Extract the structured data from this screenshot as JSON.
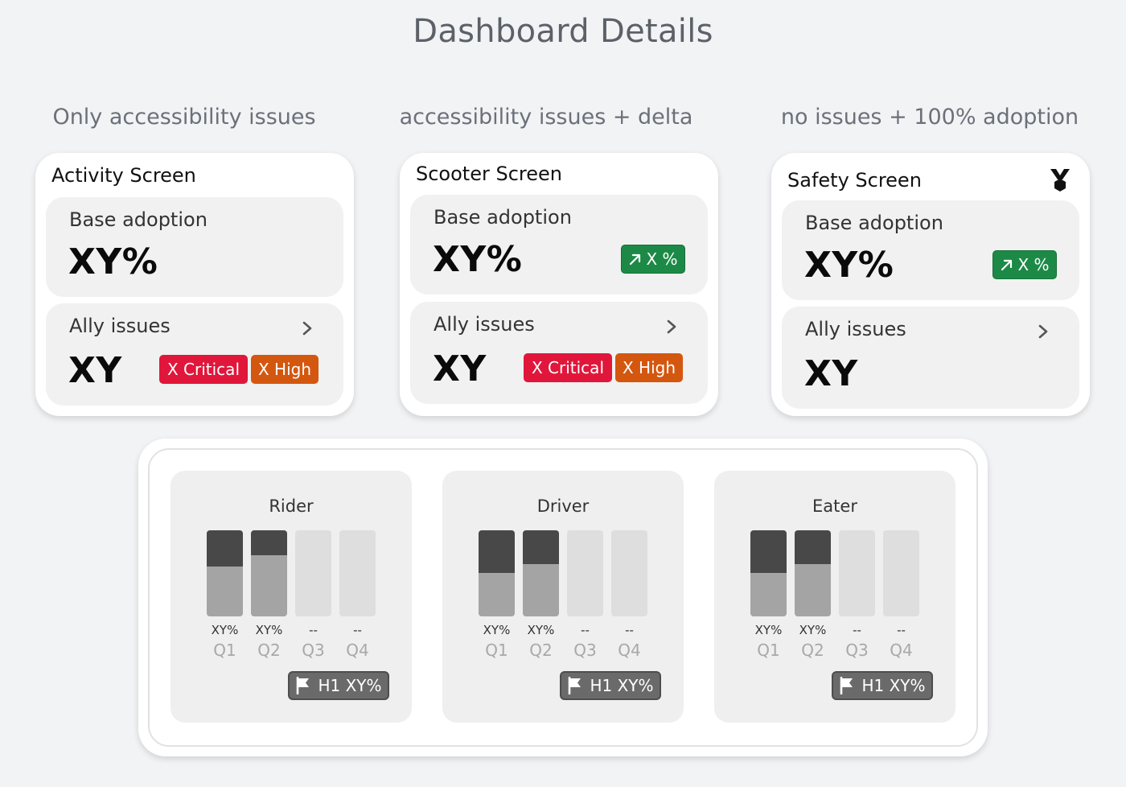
{
  "page": {
    "title": "Dashboard Details"
  },
  "columns": [
    {
      "heading": "Only accessibility issues",
      "card": {
        "title": "Activity Screen",
        "adoption_label": "Base adoption",
        "adoption_value": "XY%",
        "issues_label": "Ally issues",
        "issues_value": "XY",
        "critical": "X Critical",
        "high": "X High"
      }
    },
    {
      "heading": "accessibility issues + delta",
      "card": {
        "title": "Scooter Screen",
        "adoption_label": "Base adoption",
        "adoption_value": "XY%",
        "delta": "X %",
        "issues_label": "Ally issues",
        "issues_value": "XY",
        "critical": "X Critical",
        "high": "X High"
      }
    },
    {
      "heading": "no issues + 100% adoption",
      "card": {
        "title": "Safety Screen",
        "icon": "medal-icon",
        "adoption_label": "Base adoption",
        "adoption_value": "XY%",
        "delta": "X %",
        "issues_label": "Ally issues",
        "issues_value": "XY"
      }
    }
  ],
  "segments": [
    {
      "title": "Rider",
      "quarters": [
        {
          "label": "Q1",
          "value": "XY%",
          "dark": 0.42,
          "light": 0.58
        },
        {
          "label": "Q2",
          "value": "XY%",
          "dark": 0.29,
          "light": 0.71
        },
        {
          "label": "Q3",
          "value": "--",
          "dark": 0,
          "light": 0
        },
        {
          "label": "Q4",
          "value": "--",
          "dark": 0,
          "light": 0
        }
      ],
      "chip": "H1 XY%"
    },
    {
      "title": "Driver",
      "quarters": [
        {
          "label": "Q1",
          "value": "XY%",
          "dark": 0.5,
          "light": 0.5
        },
        {
          "label": "Q2",
          "value": "XY%",
          "dark": 0.39,
          "light": 0.61
        },
        {
          "label": "Q3",
          "value": "--",
          "dark": 0,
          "light": 0
        },
        {
          "label": "Q4",
          "value": "--",
          "dark": 0,
          "light": 0
        }
      ],
      "chip": "H1 XY%"
    },
    {
      "title": "Eater",
      "quarters": [
        {
          "label": "Q1",
          "value": "XY%",
          "dark": 0.5,
          "light": 0.5
        },
        {
          "label": "Q2",
          "value": "XY%",
          "dark": 0.39,
          "light": 0.61
        },
        {
          "label": "Q3",
          "value": "--",
          "dark": 0,
          "light": 0
        },
        {
          "label": "Q4",
          "value": "--",
          "dark": 0,
          "light": 0
        }
      ],
      "chip": "H1 XY%"
    }
  ],
  "colors": {
    "critical": "#e0173b",
    "high": "#d4570f",
    "delta": "#1c8a46",
    "bar_dark": "#484848",
    "bar_light": "#a4a4a4",
    "bar_empty": "#dedede"
  }
}
